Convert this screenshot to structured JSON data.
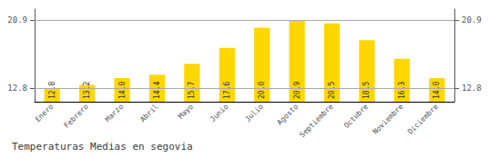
{
  "chart_data": {
    "type": "bar",
    "title": "Temperaturas Medias en segovia",
    "categories": [
      "Enero",
      "Febrero",
      "Marzo",
      "Abril",
      "Mayo",
      "Junio",
      "Julio",
      "Agosto",
      "Septiembre",
      "Octubre",
      "Noviembre",
      "Diciembre"
    ],
    "values": [
      12.8,
      13.2,
      14.0,
      14.4,
      15.7,
      17.6,
      20.0,
      20.9,
      20.5,
      18.5,
      16.3,
      14.0
    ],
    "value_labels": [
      "12.8",
      "13.2",
      "14.0",
      "14.4",
      "15.7",
      "17.6",
      "20.0",
      "20.9",
      "20.5",
      "18.5",
      "16.3",
      "14.0"
    ],
    "color": "#FFD700",
    "ylim": [
      11.2,
      22.2
    ],
    "yticks": [
      12.8,
      20.9
    ],
    "y2lim": [
      11.2,
      22.2
    ],
    "y2ticks": [
      12.8,
      20.9
    ],
    "grid": true,
    "data_labels": true
  }
}
